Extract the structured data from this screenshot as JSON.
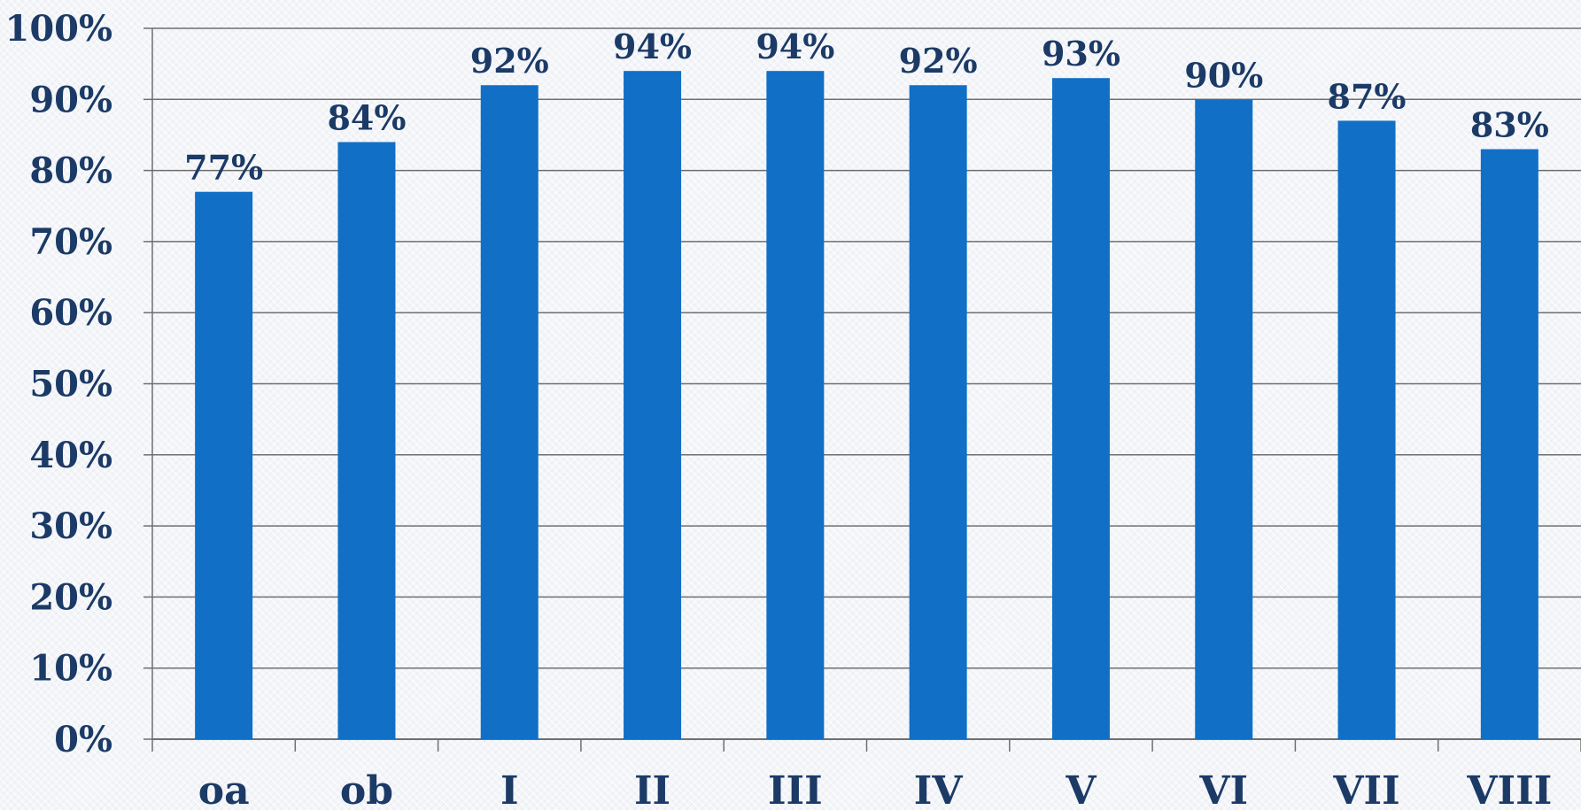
{
  "chart_data": {
    "type": "bar",
    "title": "",
    "xlabel": "",
    "ylabel": "",
    "categories": [
      "oa",
      "ob",
      "I",
      "II",
      "III",
      "IV",
      "V",
      "VI",
      "VII",
      "VIII"
    ],
    "values": [
      77,
      84,
      92,
      94,
      94,
      92,
      93,
      90,
      87,
      83
    ],
    "data_labels": [
      "77%",
      "84%",
      "92%",
      "94%",
      "94%",
      "92%",
      "93%",
      "90%",
      "87%",
      "83%"
    ],
    "ylim": [
      0,
      100
    ],
    "yticks": [
      0,
      10,
      20,
      30,
      40,
      50,
      60,
      70,
      80,
      90,
      100
    ],
    "ytick_labels": [
      "0%",
      "10%",
      "20%",
      "30%",
      "40%",
      "50%",
      "60%",
      "70%",
      "80%",
      "90%",
      "100%"
    ],
    "grid": true,
    "legend": "none",
    "colors": {
      "bar": "#116fc6",
      "text": "#1b3a66",
      "grid": "#6f6f6f",
      "axis": "#6f6f6f"
    }
  }
}
